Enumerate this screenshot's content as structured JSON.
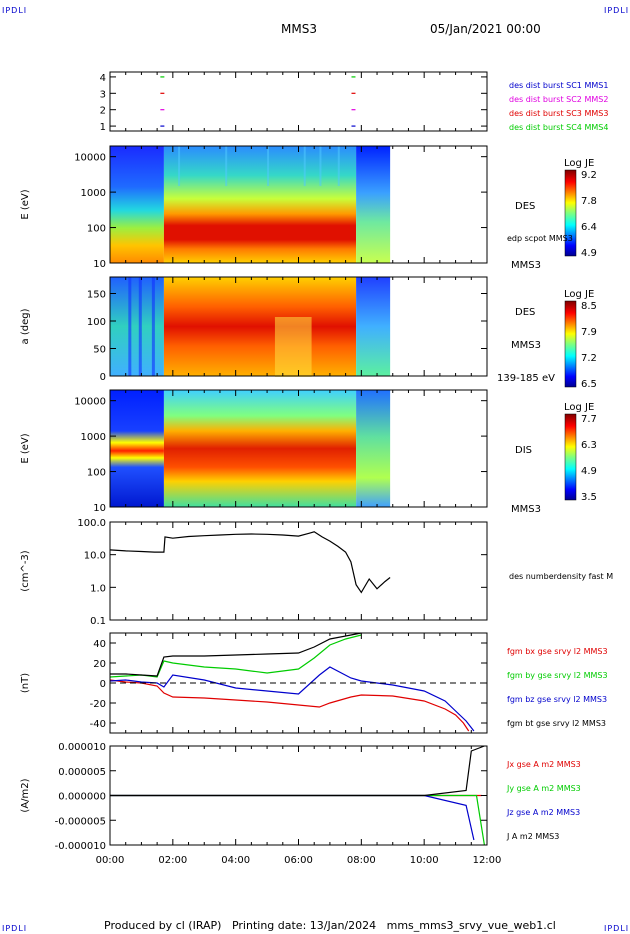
{
  "header": {
    "corner_label": "IPDLI",
    "spacecraft": "MMS3",
    "date_time": "05/Jan/2021 00:00"
  },
  "footer": {
    "text": "Produced by cl (IRAP)   Printing date: 13/Jan/2024   mms_mms3_srvy_vue_web1.cl"
  },
  "colors": {
    "red": "#e00000",
    "green": "#00cc00",
    "blue": "#0000cc",
    "magenta": "#e000e0",
    "black": "#000000"
  },
  "chart_data": [
    {
      "type": "scatter",
      "id": "burst_availability",
      "yticks": [
        "1",
        "2",
        "3",
        "4"
      ],
      "legend": [
        {
          "label": "des dist burst SC1 MMS1",
          "color": "#0000cc"
        },
        {
          "label": "des dist burst SC2 MMS2",
          "color": "#e000e0"
        },
        {
          "label": "des dist burst SC3 MMS3",
          "color": "#e00000"
        },
        {
          "label": "des dist burst SC4 MMS4",
          "color": "#00cc00"
        }
      ],
      "markers": [
        {
          "x": "01:40",
          "y": 4,
          "color": "#00cc00"
        },
        {
          "x": "01:40",
          "y": 3,
          "color": "#e00000"
        },
        {
          "x": "01:40",
          "y": 2,
          "color": "#e000e0"
        },
        {
          "x": "01:40",
          "y": 1,
          "color": "#0000cc"
        },
        {
          "x": "07:45",
          "y": 4,
          "color": "#00cc00"
        },
        {
          "x": "07:45",
          "y": 3,
          "color": "#e00000"
        },
        {
          "x": "07:45",
          "y": 2,
          "color": "#e000e0"
        },
        {
          "x": "07:45",
          "y": 1,
          "color": "#0000cc"
        }
      ]
    },
    {
      "type": "heatmap",
      "id": "des_energy",
      "ylabel": "E (eV)",
      "yscale": "log",
      "ylim": [
        10,
        20000
      ],
      "yticks": [
        "10",
        "100",
        "1000",
        "10000"
      ],
      "right_labels": [
        "DES",
        "edp scpot MMS3",
        "MMS3"
      ],
      "colorbar": {
        "title": "Log JE",
        "ticks": [
          "9.2",
          "7.8",
          "6.4",
          "4.9"
        ],
        "range": [
          4.9,
          9.2
        ]
      },
      "data_end": "08:55"
    },
    {
      "type": "heatmap",
      "id": "des_pitch",
      "ylabel": "a (deg)",
      "ylim": [
        0,
        180
      ],
      "yticks": [
        "0",
        "50",
        "100",
        "150"
      ],
      "right_labels": [
        "DES",
        "MMS3",
        "139-185 eV"
      ],
      "colorbar": {
        "title": "Log JE",
        "ticks": [
          "8.5",
          "7.9",
          "7.2",
          "6.5"
        ],
        "range": [
          6.5,
          8.5
        ]
      },
      "data_end": "08:55"
    },
    {
      "type": "heatmap",
      "id": "dis_energy",
      "ylabel": "E (eV)",
      "yscale": "log",
      "ylim": [
        10,
        20000
      ],
      "yticks": [
        "10",
        "100",
        "1000",
        "10000"
      ],
      "right_labels": [
        "DIS",
        "MMS3"
      ],
      "colorbar": {
        "title": "Log JE",
        "ticks": [
          "7.7",
          "6.3",
          "4.9",
          "3.5"
        ],
        "range": [
          3.5,
          7.7
        ]
      },
      "data_end": "08:55"
    },
    {
      "type": "line",
      "id": "density",
      "ylabel": "(cm^-3)",
      "yscale": "log",
      "ylim": [
        0.1,
        100
      ],
      "yticks": [
        "0.1",
        "1.0",
        "10.0",
        "100.0"
      ],
      "series": [
        {
          "name": "des numberdensity fast M",
          "color": "#000000",
          "x": [
            "00:00",
            "00:30",
            "01:00",
            "01:25",
            "01:43",
            "01:45",
            "02:00",
            "02:30",
            "03:00",
            "03:30",
            "04:00",
            "04:30",
            "05:00",
            "05:30",
            "06:00",
            "06:20",
            "06:30",
            "06:45",
            "07:00",
            "07:15",
            "07:30",
            "07:40",
            "07:50",
            "08:00",
            "08:15",
            "08:30",
            "08:45",
            "08:55"
          ],
          "y": [
            14,
            13,
            12.5,
            12,
            12,
            35,
            32,
            36,
            38,
            40,
            42,
            43,
            42,
            40,
            37,
            45,
            50,
            35,
            26,
            18,
            12,
            6,
            1.2,
            0.7,
            1.8,
            0.9,
            1.5,
            2
          ]
        }
      ]
    },
    {
      "type": "line",
      "id": "magnetic_field",
      "ylabel": "(nT)",
      "ylim": [
        -50,
        50
      ],
      "yticks": [
        "-40",
        "-20",
        "0",
        "20",
        "40"
      ],
      "series": [
        {
          "name": "fgm bx gse srvy l2 MMS3",
          "color": "#e00000",
          "x": [
            "00:00",
            "00:30",
            "01:00",
            "01:30",
            "01:43",
            "02:00",
            "03:00",
            "04:00",
            "05:00",
            "06:00",
            "06:40",
            "07:00",
            "07:40",
            "08:00",
            "09:00",
            "10:00",
            "10:40",
            "11:00",
            "11:15",
            "11:25"
          ],
          "y": [
            3,
            1,
            0,
            -3,
            -10,
            -14,
            -15,
            -17,
            -19,
            -22,
            -24,
            -20,
            -14,
            -12,
            -13,
            -18,
            -26,
            -32,
            -40,
            -48
          ]
        },
        {
          "name": "fgm by gse srvy l2 MMS3",
          "color": "#00cc00",
          "x": [
            "00:00",
            "00:30",
            "01:00",
            "01:30",
            "01:43",
            "02:00",
            "03:00",
            "04:00",
            "05:00",
            "06:00",
            "06:30",
            "07:00",
            "07:30",
            "08:00"
          ],
          "y": [
            6,
            7,
            8,
            6,
            22,
            20,
            16,
            14,
            10,
            14,
            25,
            38,
            44,
            48
          ]
        },
        {
          "name": "fgm bz gse srvy l2 MMS3",
          "color": "#0000cc",
          "x": [
            "00:00",
            "00:30",
            "01:00",
            "01:30",
            "01:43",
            "02:00",
            "03:00",
            "04:00",
            "05:00",
            "06:00",
            "06:40",
            "07:00",
            "07:40",
            "08:00",
            "09:00",
            "10:00",
            "10:40",
            "11:00",
            "11:20",
            "11:35"
          ],
          "y": [
            2,
            3,
            1,
            0,
            -4,
            8,
            3,
            -5,
            -8,
            -11,
            8,
            16,
            5,
            2,
            -2,
            -8,
            -18,
            -28,
            -38,
            -48
          ]
        },
        {
          "name": "fgm bt gse srvy l2 MMS3",
          "color": "#000000",
          "x": [
            "00:00",
            "00:30",
            "01:00",
            "01:30",
            "01:43",
            "02:00",
            "03:00",
            "04:00",
            "05:00",
            "06:00",
            "06:30",
            "07:00",
            "07:40",
            "08:00"
          ],
          "y": [
            9,
            9,
            8,
            7,
            26,
            27,
            27,
            28,
            29,
            30,
            36,
            44,
            48,
            50
          ]
        }
      ],
      "reference_line": 0
    },
    {
      "type": "line",
      "id": "current_density",
      "ylabel": "(A/m2)",
      "ylim": [
        -1e-05,
        1e-05
      ],
      "yticks": [
        "-0.000010",
        "-0.000005",
        "0.000000",
        "0.000005",
        "0.000010"
      ],
      "xticks": [
        "00:00",
        "02:00",
        "04:00",
        "06:00",
        "08:00",
        "10:00",
        "12:00"
      ],
      "series": [
        {
          "name": "Jx gse A m2 MMS3",
          "color": "#e00000",
          "x": [
            "00:00",
            "01:43",
            "10:00",
            "11:30",
            "11:50"
          ],
          "y": [
            0,
            0,
            0,
            0,
            0
          ]
        },
        {
          "name": "Jy gse A m2 MMS3",
          "color": "#00cc00",
          "x": [
            "00:00",
            "10:00",
            "11:40",
            "11:55"
          ],
          "y": [
            0,
            0,
            0,
            -1e-05
          ]
        },
        {
          "name": "Jz gse A m2 MMS3",
          "color": "#0000cc",
          "x": [
            "00:00",
            "10:00",
            "11:20",
            "11:35"
          ],
          "y": [
            0,
            0,
            -2e-06,
            -9e-06
          ]
        },
        {
          "name": "J A m2 MMS3",
          "color": "#000000",
          "x": [
            "00:00",
            "10:00",
            "11:20",
            "11:30",
            "11:55"
          ],
          "y": [
            0,
            0,
            1e-06,
            9e-06,
            1e-05
          ]
        }
      ]
    }
  ]
}
